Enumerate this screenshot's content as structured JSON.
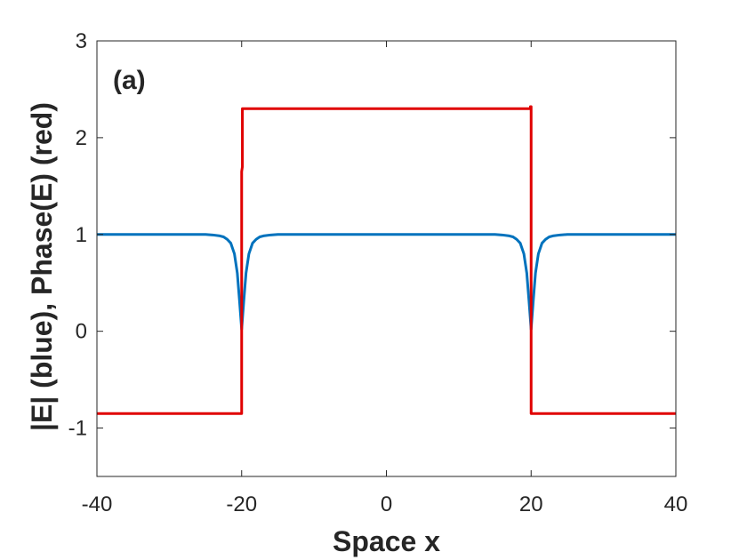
{
  "chart_data": {
    "type": "line",
    "title": "",
    "panel_label": "(a)",
    "xlabel": "Space x",
    "ylabel": "|E| (blue), Phase(E) (red)",
    "xlim": [
      -40,
      40
    ],
    "ylim": [
      -1.5,
      3
    ],
    "xticks": [
      -40,
      -20,
      0,
      20,
      40
    ],
    "yticks": [
      -1,
      0,
      1,
      2,
      3
    ],
    "grid": false,
    "legend": "none",
    "series": [
      {
        "color": "#0072BD",
        "x": [
          -40,
          -30,
          -25,
          -24,
          -23,
          -22.5,
          -22,
          -21.5,
          -21,
          -20.6,
          -20.3,
          -20,
          -19.7,
          -19.4,
          -19,
          -18.5,
          -18,
          -17.5,
          -17,
          -16,
          -15,
          -10,
          0,
          10,
          15,
          16,
          17,
          17.5,
          18,
          18.5,
          19,
          19.4,
          19.7,
          20,
          20.3,
          20.6,
          21,
          21.5,
          22,
          22.5,
          23,
          24,
          25,
          30,
          40
        ],
        "y": [
          1,
          1,
          1,
          0.995,
          0.985,
          0.975,
          0.95,
          0.91,
          0.8,
          0.6,
          0.32,
          0.02,
          0.32,
          0.6,
          0.8,
          0.91,
          0.95,
          0.975,
          0.985,
          0.995,
          1,
          1,
          1,
          1,
          1,
          0.995,
          0.985,
          0.975,
          0.95,
          0.91,
          0.8,
          0.6,
          0.32,
          0.02,
          0.32,
          0.6,
          0.8,
          0.91,
          0.95,
          0.975,
          0.985,
          0.995,
          1,
          1,
          1
        ]
      },
      {
        "color": "#E00000",
        "x": [
          -40,
          -20,
          -20,
          -19.9,
          -19.9,
          19.9,
          19.9,
          20,
          20,
          40
        ],
        "y": [
          -0.85,
          -0.85,
          1.65,
          1.7,
          2.3,
          2.3,
          2.32,
          2.32,
          -0.85,
          -0.85
        ]
      }
    ]
  }
}
